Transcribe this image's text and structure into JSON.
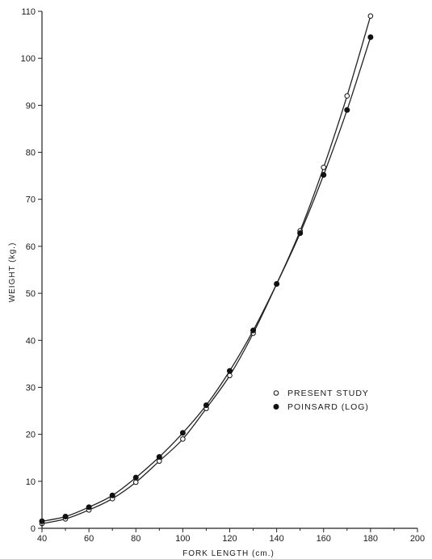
{
  "chart_data": {
    "type": "line",
    "xlabel": "FORK LENGTH (cm.)",
    "ylabel": "WEIGHT (kg.)",
    "xlim": [
      40,
      200
    ],
    "ylim": [
      0,
      110
    ],
    "xticks": [
      40,
      60,
      80,
      100,
      120,
      140,
      160,
      180,
      200
    ],
    "yticks": [
      0,
      10,
      20,
      30,
      40,
      50,
      60,
      70,
      80,
      90,
      100,
      110
    ],
    "grid": false,
    "legend_position": "center-right",
    "series": [
      {
        "name": "PRESENT STUDY",
        "marker": "open-circle",
        "x": [
          40,
          50,
          60,
          70,
          80,
          90,
          100,
          110,
          120,
          130,
          140,
          150,
          160,
          170,
          180
        ],
        "y": [
          1.0,
          2.0,
          3.9,
          6.3,
          9.8,
          14.3,
          19.0,
          25.5,
          32.5,
          41.5,
          52.0,
          63.3,
          76.8,
          92.0,
          109.0
        ]
      },
      {
        "name": "POINSARD (LOG)",
        "marker": "filled-circle",
        "x": [
          40,
          50,
          60,
          70,
          80,
          90,
          100,
          110,
          120,
          130,
          140,
          150,
          160,
          170,
          180
        ],
        "y": [
          1.5,
          2.5,
          4.5,
          7.0,
          10.8,
          15.2,
          20.3,
          26.2,
          33.5,
          42.1,
          52.0,
          62.8,
          75.2,
          89.0,
          104.5
        ]
      }
    ]
  }
}
